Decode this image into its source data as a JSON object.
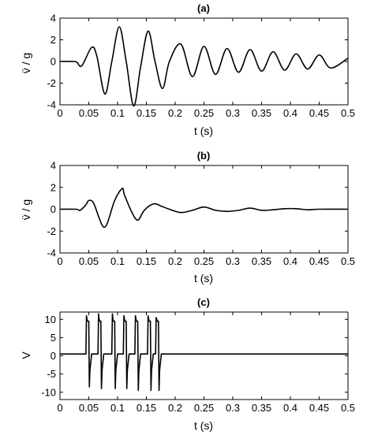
{
  "chart_data": [
    {
      "type": "line",
      "title": "(a)",
      "xlabel": "t (s)",
      "ylabel": "v̈ / g",
      "xlim": [
        0,
        0.5
      ],
      "ylim": [
        -4,
        4
      ],
      "xticks": [
        "0",
        "0.05",
        "0.1",
        "0.15",
        "0.2",
        "0.25",
        "0.3",
        "0.35",
        "0.4",
        "0.45",
        "0.5"
      ],
      "yticks": [
        "-4",
        "-2",
        "0",
        "2",
        "4"
      ],
      "grid": false,
      "series": [
        {
          "x": [
            0,
            0.025,
            0.03,
            0.038,
            0.055,
            0.064,
            0.078,
            0.09,
            0.103,
            0.115,
            0.128,
            0.14,
            0.153,
            0.165,
            0.178,
            0.19,
            0.21,
            0.23,
            0.25,
            0.27,
            0.29,
            0.31,
            0.33,
            0.35,
            0.37,
            0.39,
            0.41,
            0.43,
            0.45,
            0.47,
            0.5
          ],
          "y": [
            0,
            0,
            -0.1,
            -0.4,
            1.3,
            0.5,
            -3.0,
            0,
            3.2,
            0,
            -4.1,
            -0.5,
            2.8,
            0,
            -2.5,
            0,
            1.6,
            -1.4,
            1.4,
            -1.2,
            1.2,
            -1.0,
            1.1,
            -0.9,
            0.9,
            -0.8,
            0.7,
            -0.7,
            0.6,
            -0.6,
            0.3
          ]
        }
      ]
    },
    {
      "type": "line",
      "title": "(b)",
      "xlabel": "t (s)",
      "ylabel": "v̈ / g",
      "xlim": [
        0,
        0.5
      ],
      "ylim": [
        -4,
        4
      ],
      "xticks": [
        "0",
        "0.05",
        "0.1",
        "0.15",
        "0.2",
        "0.25",
        "0.3",
        "0.35",
        "0.4",
        "0.45",
        "0.5"
      ],
      "yticks": [
        "-4",
        "-2",
        "0",
        "2",
        "4"
      ],
      "grid": false,
      "series": [
        {
          "x": [
            0,
            0.028,
            0.035,
            0.045,
            0.05,
            0.058,
            0.068,
            0.075,
            0.082,
            0.095,
            0.108,
            0.112,
            0.125,
            0.135,
            0.145,
            0.155,
            0.165,
            0.175,
            0.19,
            0.21,
            0.23,
            0.25,
            0.27,
            0.29,
            0.31,
            0.33,
            0.35,
            0.37,
            0.39,
            0.41,
            0.43,
            0.45,
            0.5
          ],
          "y": [
            0,
            0,
            -0.1,
            0.4,
            0.8,
            0.6,
            -0.8,
            -1.6,
            -1.3,
            0.8,
            1.9,
            1.3,
            -0.3,
            -1.0,
            -0.2,
            0.3,
            0.5,
            0.3,
            0,
            -0.3,
            -0.1,
            0.2,
            -0.1,
            -0.2,
            -0.1,
            0.1,
            -0.1,
            -0.05,
            0.05,
            0.05,
            -0.05,
            0,
            0
          ]
        }
      ]
    },
    {
      "type": "line",
      "title": "(c)",
      "xlabel": "t (s)",
      "ylabel": "V",
      "xlim": [
        0,
        0.5
      ],
      "ylim": [
        -12,
        12
      ],
      "xticks": [
        "0",
        "0.05",
        "0.1",
        "0.15",
        "0.2",
        "0.25",
        "0.3",
        "0.35",
        "0.4",
        "0.45",
        "0.5"
      ],
      "yticks": [
        "-10",
        "-5",
        "0",
        "5",
        "10"
      ],
      "grid": false,
      "series": [
        {
          "x": [
            0,
            0.045,
            0.046,
            0.047,
            0.048,
            0.05,
            0.051,
            0.052,
            0.055,
            0.066,
            0.067,
            0.068,
            0.069,
            0.071,
            0.072,
            0.073,
            0.076,
            0.09,
            0.091,
            0.092,
            0.093,
            0.095,
            0.096,
            0.097,
            0.1,
            0.11,
            0.111,
            0.112,
            0.113,
            0.115,
            0.116,
            0.117,
            0.12,
            0.13,
            0.131,
            0.132,
            0.133,
            0.135,
            0.136,
            0.137,
            0.14,
            0.152,
            0.153,
            0.154,
            0.155,
            0.157,
            0.158,
            0.159,
            0.162,
            0.166,
            0.167,
            0.168,
            0.169,
            0.171,
            0.172,
            0.173,
            0.176,
            0.5
          ],
          "y": [
            0.5,
            0.5,
            11,
            10,
            9.5,
            9.5,
            -8.5,
            -4,
            0.5,
            0.5,
            11.5,
            10,
            9.5,
            9.5,
            -9,
            -4,
            0.5,
            0.5,
            11.5,
            10,
            9.5,
            9.5,
            -9,
            -4,
            0.5,
            0.5,
            11,
            10,
            9.5,
            9.5,
            -9,
            -4,
            0.5,
            0.5,
            11,
            10,
            9.5,
            9.5,
            -9.5,
            -4,
            0.5,
            0.5,
            11,
            10,
            9.5,
            9.5,
            -9.5,
            -4,
            0.5,
            0.5,
            10.5,
            10,
            9.5,
            9.5,
            -9.5,
            -4,
            0.5,
            0.5
          ]
        }
      ]
    }
  ]
}
